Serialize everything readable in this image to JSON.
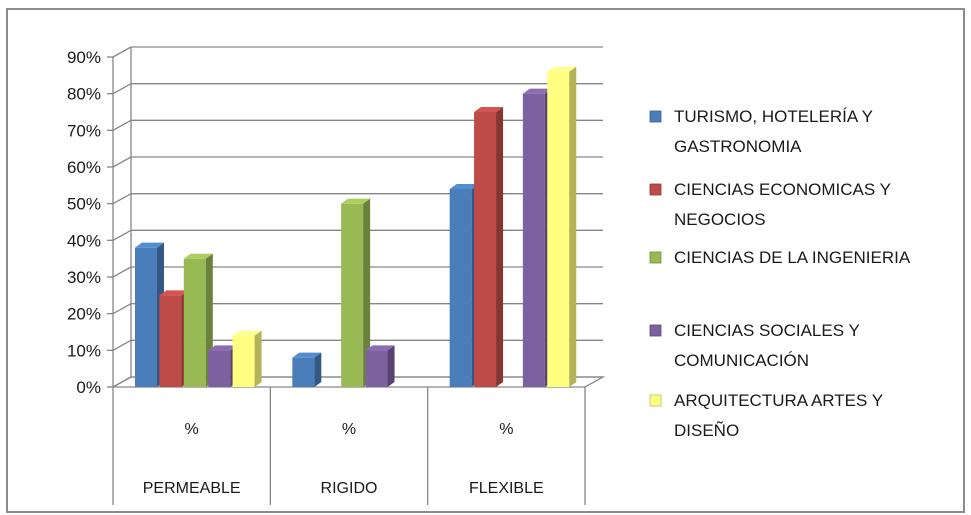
{
  "chart_data": {
    "type": "bar",
    "categories": [
      "PERMEABLE",
      "RIGIDO",
      "FLEXIBLE"
    ],
    "category_sublabels": [
      "%",
      "%",
      "%"
    ],
    "y_ticks": [
      "0%",
      "10%",
      "20%",
      "30%",
      "40%",
      "50%",
      "60%",
      "70%",
      "80%",
      "90%"
    ],
    "ylim": [
      0,
      90
    ],
    "grid": true,
    "legend_position": "right",
    "series": [
      {
        "name": "TURISMO, HOTELERÍA Y GASTRONOMIA",
        "legend_lines": [
          "TURISMO, HOTELERÍA Y",
          "GASTRONOMIA"
        ],
        "color": "#4a7ebb",
        "values": [
          38,
          8,
          54
        ]
      },
      {
        "name": "CIENCIAS ECONOMICAS Y NEGOCIOS",
        "legend_lines": [
          "CIENCIAS ECONOMICAS Y",
          "NEGOCIOS"
        ],
        "color": "#be4b48",
        "values": [
          25,
          0,
          75
        ]
      },
      {
        "name": "CIENCIAS DE LA INGENIERIA",
        "legend_lines": [
          "CIENCIAS DE LA INGENIERIA"
        ],
        "color": "#98b954",
        "values": [
          35,
          50,
          0
        ]
      },
      {
        "name": "CIENCIAS SOCIALES Y COMUNICACIÓN",
        "legend_lines": [
          "CIENCIAS SOCIALES Y",
          "COMUNICACIÓN"
        ],
        "color": "#7d60a0",
        "values": [
          10,
          10,
          80
        ]
      },
      {
        "name": "ARQUITECTURA ARTES Y DISEÑO",
        "legend_lines": [
          "ARQUITECTURA ARTES Y",
          "DISEÑO"
        ],
        "color": "#ffff80",
        "values": [
          14,
          0,
          86
        ]
      }
    ]
  }
}
